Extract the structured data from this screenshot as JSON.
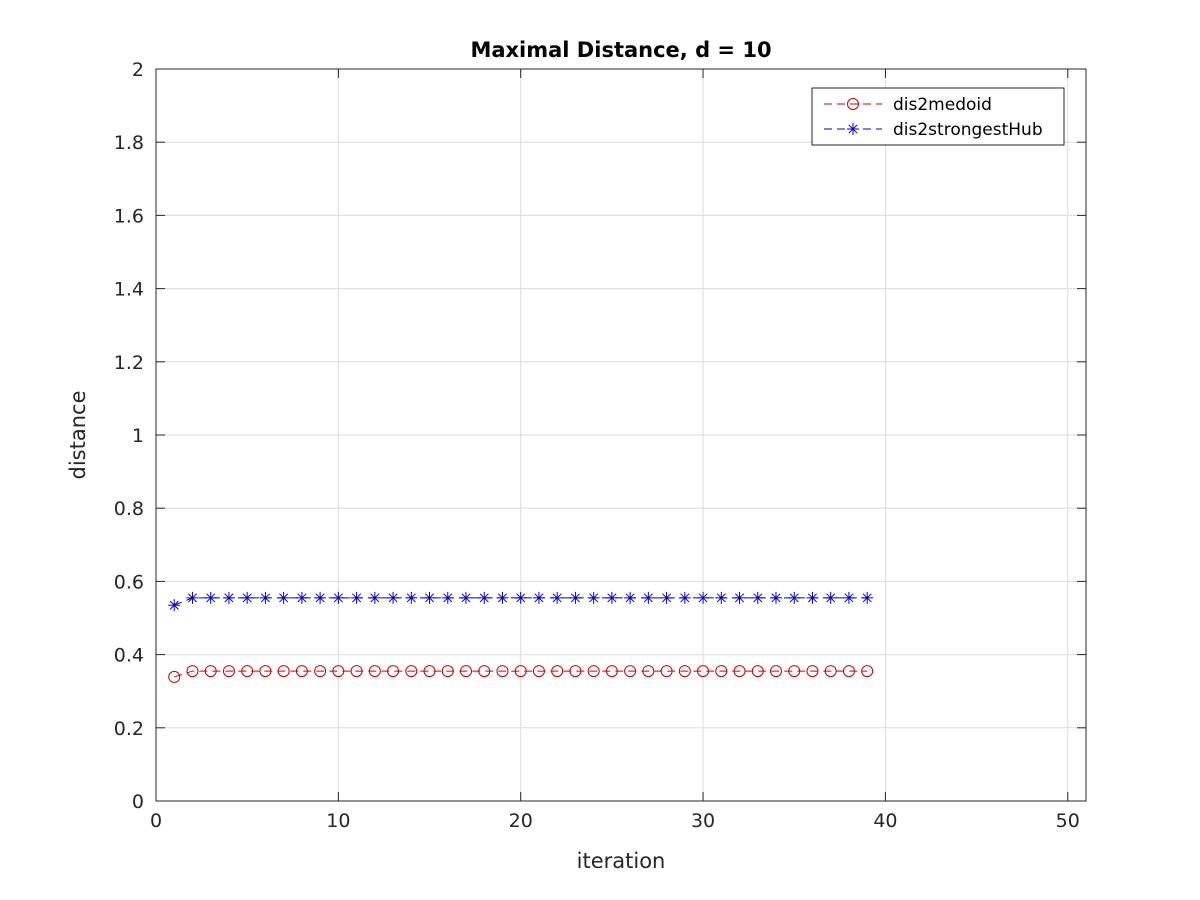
{
  "chart_data": {
    "type": "line",
    "title": "Maximal Distance, d = 10",
    "xlabel": "iteration",
    "ylabel": "distance",
    "xlim": [
      0,
      51
    ],
    "ylim": [
      0,
      2
    ],
    "xticks": [
      0,
      10,
      20,
      30,
      40,
      50
    ],
    "yticks": [
      0,
      0.2,
      0.4,
      0.6,
      0.8,
      1,
      1.2,
      1.4,
      1.6,
      1.8,
      2
    ],
    "ytick_labels": [
      "0",
      "0.2",
      "0.4",
      "0.6",
      "0.8",
      "1",
      "1.2",
      "1.4",
      "1.6",
      "1.8",
      "2"
    ],
    "grid": true,
    "legend_position": "top-right",
    "x": [
      1,
      2,
      3,
      4,
      5,
      6,
      7,
      8,
      9,
      10,
      11,
      12,
      13,
      14,
      15,
      16,
      17,
      18,
      19,
      20,
      21,
      22,
      23,
      24,
      25,
      26,
      27,
      28,
      29,
      30,
      31,
      32,
      33,
      34,
      35,
      36,
      37,
      38,
      39
    ],
    "series": [
      {
        "name": "dis2medoid",
        "color": "#cc0000",
        "marker": "circle",
        "line": "dashed",
        "values": [
          0.339,
          0.355,
          0.355,
          0.355,
          0.355,
          0.355,
          0.355,
          0.355,
          0.355,
          0.355,
          0.355,
          0.355,
          0.355,
          0.355,
          0.355,
          0.355,
          0.355,
          0.355,
          0.355,
          0.355,
          0.355,
          0.355,
          0.355,
          0.355,
          0.355,
          0.355,
          0.355,
          0.355,
          0.355,
          0.355,
          0.355,
          0.355,
          0.355,
          0.355,
          0.355,
          0.355,
          0.355,
          0.355,
          0.355
        ]
      },
      {
        "name": "dis2strongestHub",
        "color": "#0000cc",
        "marker": "asterisk",
        "line": "dashed",
        "values": [
          0.535,
          0.555,
          0.555,
          0.555,
          0.555,
          0.555,
          0.555,
          0.555,
          0.555,
          0.555,
          0.555,
          0.555,
          0.555,
          0.555,
          0.555,
          0.555,
          0.555,
          0.555,
          0.555,
          0.555,
          0.555,
          0.555,
          0.555,
          0.555,
          0.555,
          0.555,
          0.555,
          0.555,
          0.555,
          0.555,
          0.555,
          0.555,
          0.555,
          0.555,
          0.555,
          0.555,
          0.555,
          0.555,
          0.555
        ]
      }
    ]
  }
}
